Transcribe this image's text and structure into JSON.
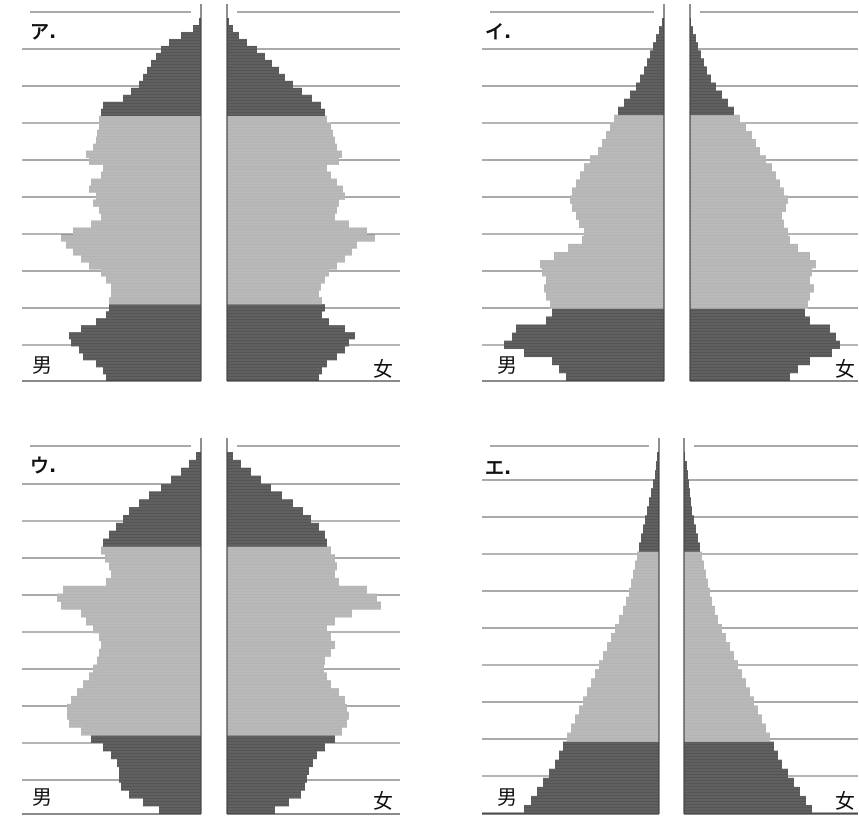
{
  "colors": {
    "dark": "#555555",
    "medium": "#8a8a8a",
    "light": "#b4b4b4",
    "grid": "#555555"
  },
  "chart_data": [
    {
      "type": "bar",
      "panel_label": "ア.",
      "male_label": "男",
      "female_label": "女",
      "bands": 10,
      "male": [
        95,
        98,
        105,
        118,
        122,
        130,
        132,
        120,
        105,
        95,
        92,
        92,
        90,
        90,
        95,
        100,
        112,
        120,
        128,
        135,
        140,
        128,
        110,
        100,
        102,
        108,
        105,
        112,
        110,
        100,
        98,
        112,
        115,
        108,
        105,
        104,
        102,
        102,
        100,
        98,
        78,
        70,
        62,
        58,
        54,
        50,
        45,
        40,
        32,
        20,
        8,
        2
      ],
      "female": [
        92,
        95,
        100,
        110,
        118,
        122,
        128,
        118,
        102,
        95,
        98,
        95,
        92,
        94,
        98,
        102,
        110,
        118,
        125,
        130,
        148,
        140,
        122,
        108,
        110,
        112,
        118,
        116,
        110,
        104,
        100,
        112,
        115,
        110,
        108,
        106,
        104,
        100,
        98,
        94,
        85,
        75,
        66,
        58,
        52,
        45,
        38,
        30,
        20,
        12,
        6,
        2
      ]
    },
    {
      "type": "bar",
      "panel_label": "イ.",
      "male_label": "男",
      "female_label": "女",
      "bands": 10,
      "male": [
        98,
        105,
        112,
        140,
        160,
        152,
        148,
        118,
        112,
        114,
        118,
        120,
        118,
        122,
        124,
        110,
        96,
        82,
        80,
        85,
        88,
        92,
        94,
        92,
        88,
        84,
        80,
        74,
        66,
        62,
        58,
        54,
        50,
        46,
        40,
        34,
        28,
        24,
        20,
        17,
        14,
        11,
        8,
        5,
        2
      ],
      "female": [
        100,
        108,
        120,
        142,
        150,
        146,
        140,
        120,
        115,
        118,
        120,
        124,
        120,
        122,
        126,
        120,
        108,
        100,
        98,
        94,
        92,
        96,
        98,
        94,
        90,
        86,
        82,
        76,
        70,
        66,
        62,
        56,
        50,
        44,
        38,
        32,
        26,
        21,
        17,
        14,
        11,
        8,
        6,
        3,
        1
      ]
    },
    {
      "type": "bar",
      "panel_label": "ウ.",
      "male_label": "男",
      "female_label": "女",
      "bands": 10,
      "male": [
        42,
        58,
        72,
        80,
        82,
        82,
        84,
        90,
        98,
        110,
        120,
        132,
        134,
        134,
        130,
        124,
        118,
        112,
        108,
        104,
        102,
        100,
        102,
        108,
        115,
        120,
        140,
        144,
        138,
        95,
        90,
        92,
        96,
        100,
        98,
        92,
        85,
        78,
        72,
        62,
        52,
        40,
        30,
        20,
        12,
        5
      ],
      "female": [
        48,
        62,
        74,
        78,
        80,
        82,
        86,
        90,
        98,
        108,
        115,
        120,
        122,
        120,
        118,
        112,
        104,
        100,
        97,
        98,
        104,
        108,
        104,
        100,
        108,
        125,
        154,
        150,
        140,
        112,
        108,
        110,
        108,
        104,
        100,
        98,
        92,
        84,
        76,
        66,
        55,
        44,
        34,
        24,
        14,
        6
      ]
    },
    {
      "type": "bar",
      "panel_label": "エ.",
      "male_label": "男",
      "female_label": "女",
      "bands": 10,
      "male": [
        135,
        128,
        122,
        116,
        110,
        104,
        100,
        96,
        92,
        88,
        84,
        80,
        76,
        72,
        68,
        64,
        60,
        56,
        52,
        48,
        44,
        40,
        36,
        33,
        30,
        28,
        26,
        24,
        22,
        20,
        18,
        16,
        14,
        12,
        10,
        8,
        6,
        4,
        3,
        2
      ],
      "female": [
        128,
        122,
        116,
        110,
        104,
        98,
        94,
        90,
        86,
        82,
        78,
        74,
        70,
        66,
        62,
        58,
        54,
        50,
        46,
        42,
        38,
        34,
        31,
        28,
        26,
        24,
        22,
        20,
        18,
        16,
        14,
        12,
        10,
        8,
        7,
        6,
        5,
        4,
        3,
        1
      ]
    }
  ]
}
